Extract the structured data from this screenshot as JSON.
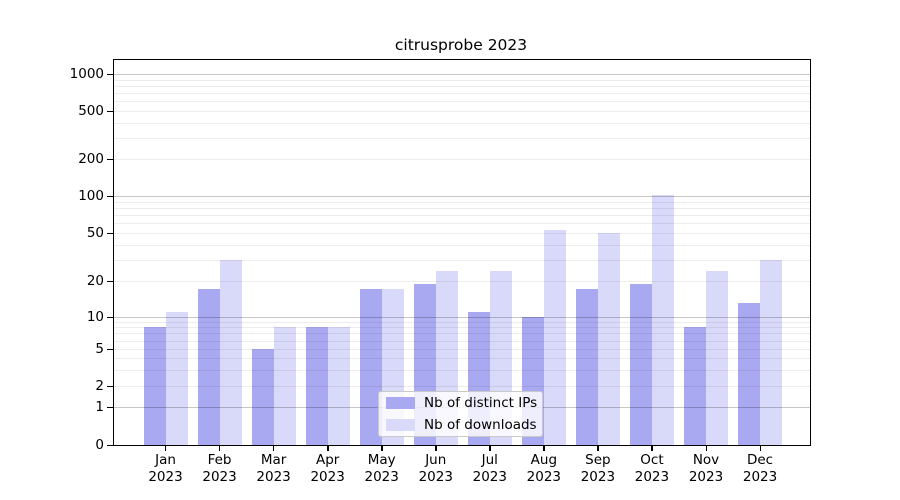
{
  "chart_data": {
    "type": "bar",
    "title": "citrusprobe 2023",
    "categories": [
      "Jan",
      "Feb",
      "Mar",
      "Apr",
      "May",
      "Jun",
      "Jul",
      "Aug",
      "Sep",
      "Oct",
      "Nov",
      "Dec"
    ],
    "x_tick_second_line": "2023",
    "series": [
      {
        "name": "Nb of distinct IPs",
        "color": "#a9a9f1",
        "values": [
          8,
          17,
          5,
          8,
          17,
          19,
          11,
          10,
          17,
          19,
          8,
          13
        ]
      },
      {
        "name": "Nb of downloads",
        "color": "#d9d9f9",
        "values": [
          11,
          30,
          8,
          8,
          17,
          24,
          24,
          53,
          50,
          102,
          24,
          30
        ]
      }
    ],
    "y_ticks": [
      0,
      1,
      2,
      5,
      10,
      20,
      50,
      100,
      200,
      500,
      1000
    ],
    "y_scale": "log with linear segment near zero",
    "ylim": [
      0,
      1300
    ],
    "xlabel": "",
    "ylabel": "",
    "grid": "horizontal major and minor gridlines on",
    "legend_position": "lower center"
  },
  "colors": {
    "bar_distinct_ips": "#a9a9f1",
    "bar_downloads": "#d9d9f9",
    "grid_major": "rgba(0,0,0,0.22)",
    "grid_minor": "rgba(0,0,0,0.07)",
    "spine": "#000000",
    "legend_border": "#c9c9c9",
    "text": "#000000"
  }
}
